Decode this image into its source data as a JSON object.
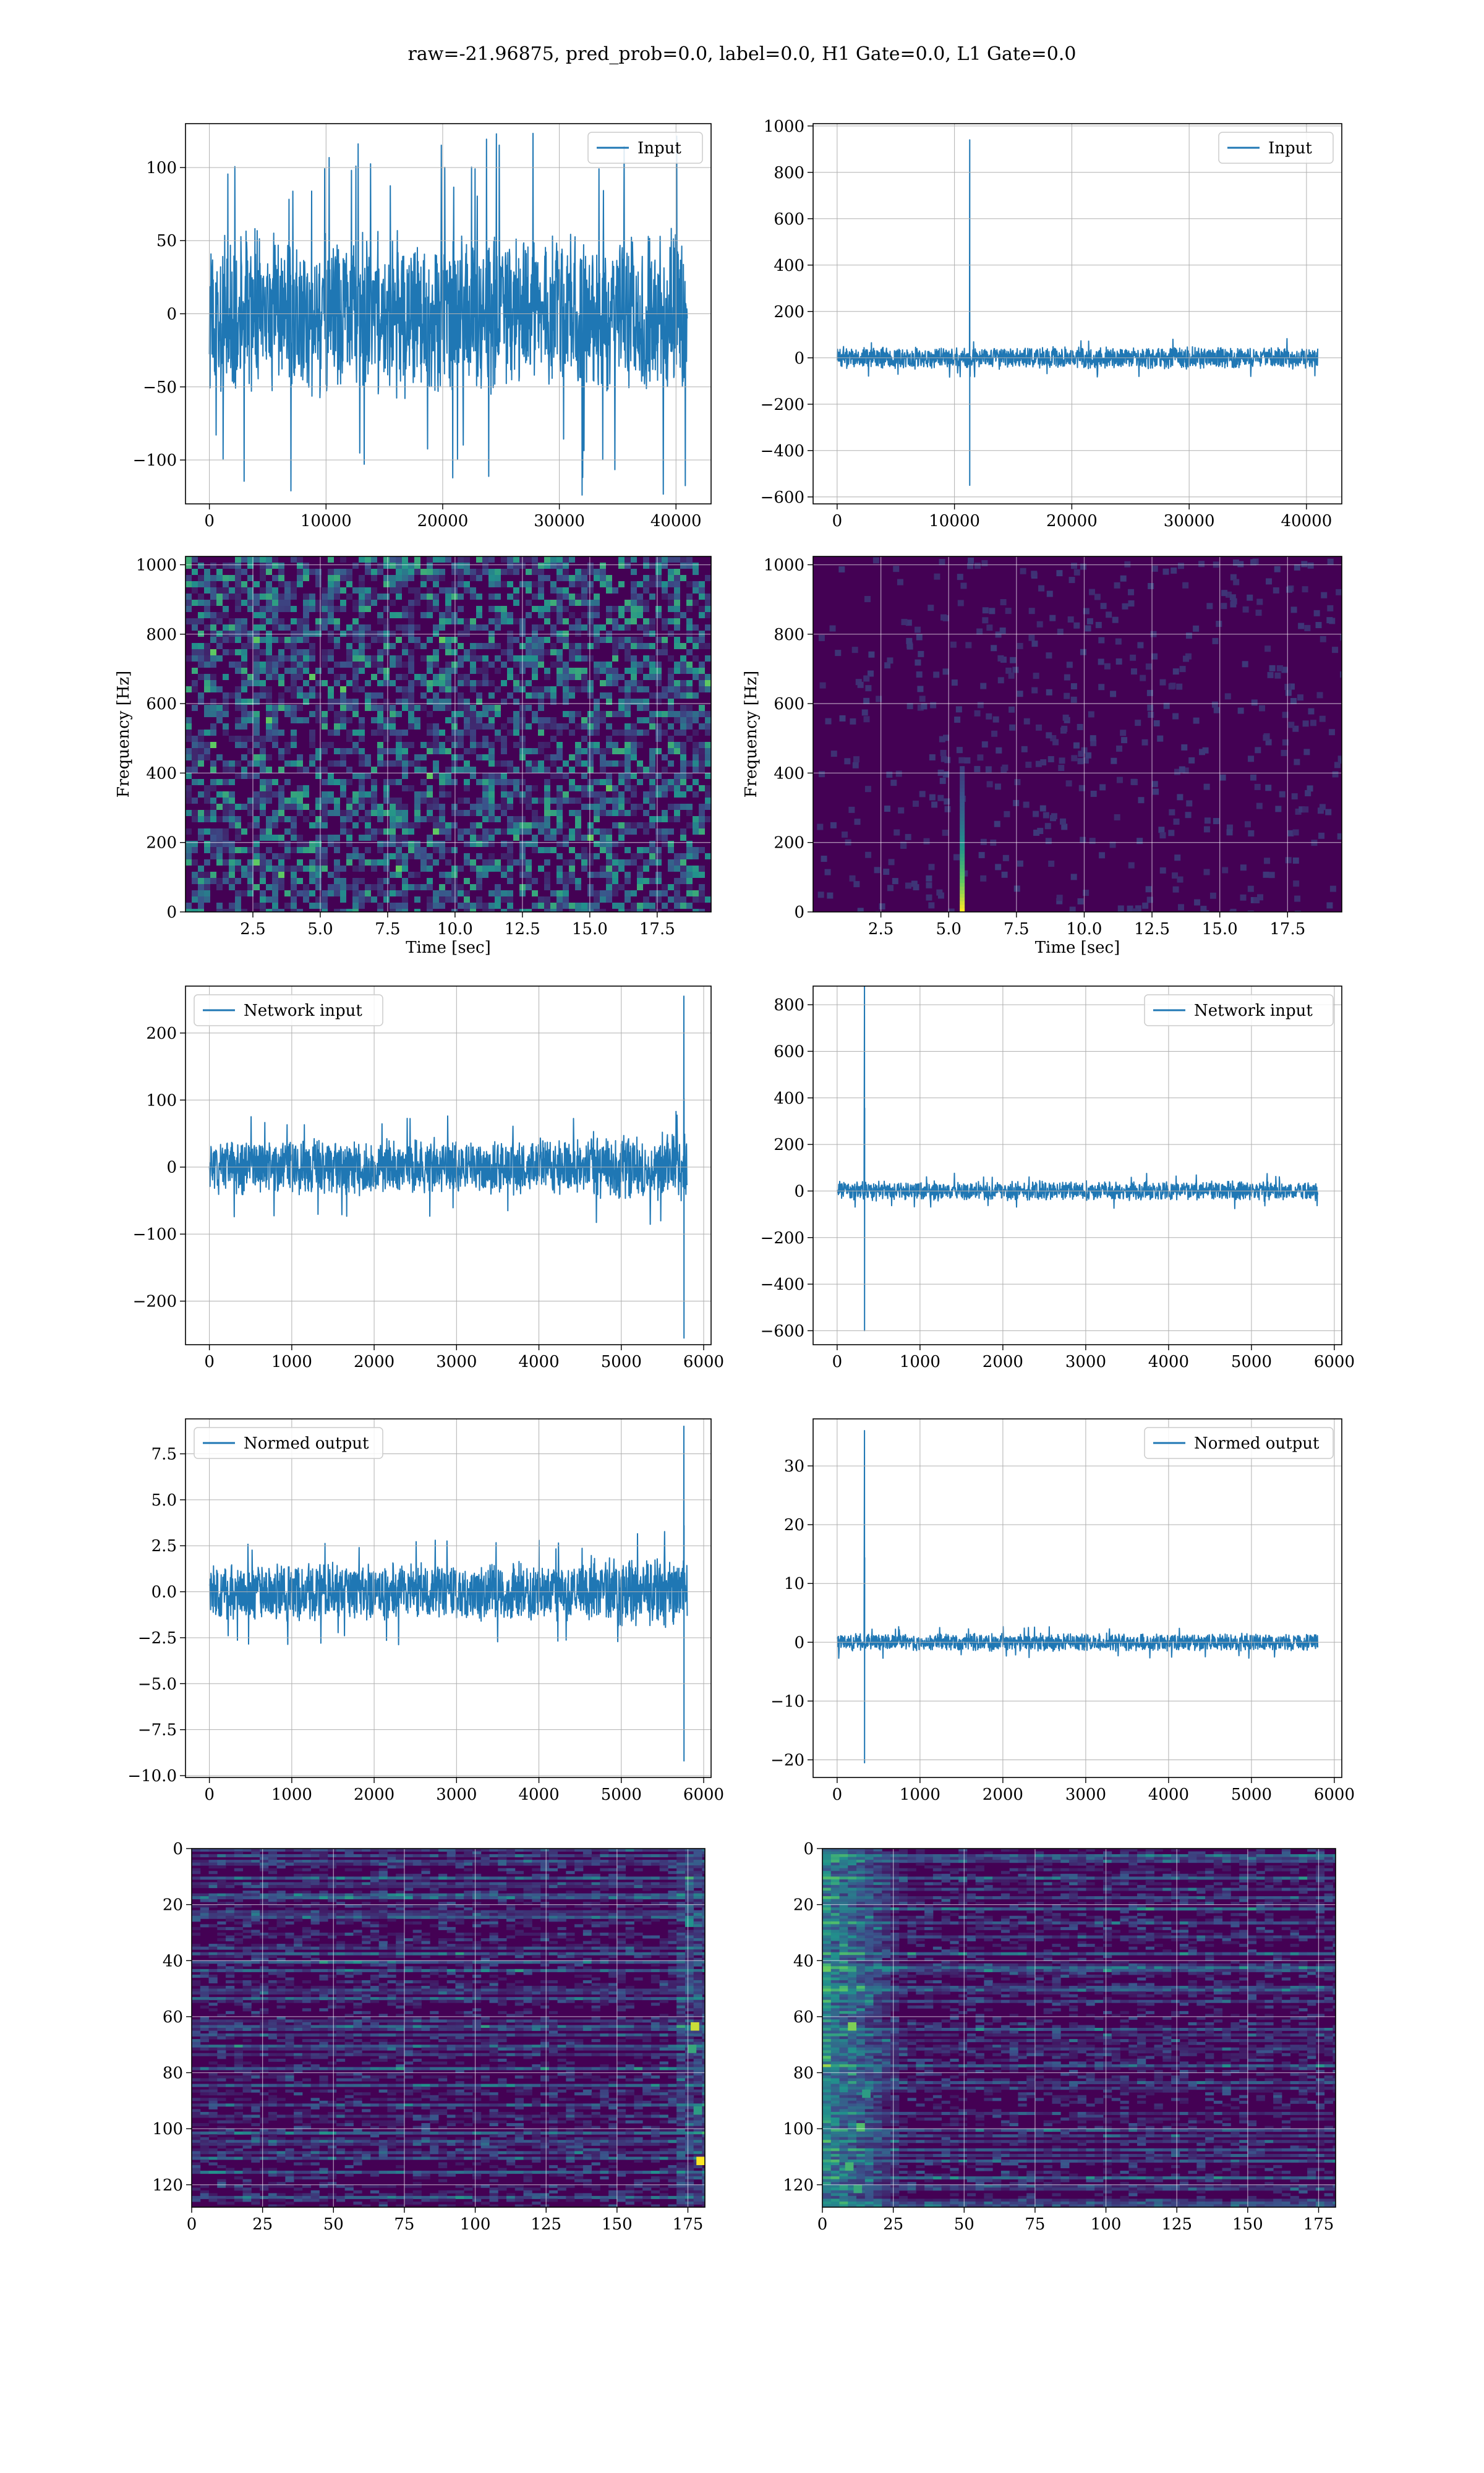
{
  "figure": {
    "title": "raw=-21.96875, pred_prob=0.0, label=0.0, H1 Gate=0.0, L1 Gate=0.0"
  },
  "colors": {
    "line": "#1f77b4",
    "viridis_low": "#440154",
    "viridis_mid": "#21918c",
    "viridis_high": "#fde725",
    "grid": "#b0b0b0"
  },
  "chart_data": [
    {
      "id": "input-h1",
      "type": "line",
      "legend": "Input",
      "legend_loc": "upper-right",
      "xlim": [
        -2048,
        43008
      ],
      "ylim": [
        -130,
        130
      ],
      "xticks": [
        0,
        10000,
        20000,
        30000,
        40000
      ],
      "yticks": [
        -100,
        -50,
        0,
        50,
        100
      ],
      "x": [
        0,
        40960
      ],
      "noise_amp": 60,
      "peak_amp": 125,
      "grid": true
    },
    {
      "id": "input-l1",
      "type": "line",
      "legend": "Input",
      "legend_loc": "upper-right",
      "xlim": [
        -2048,
        43008
      ],
      "ylim": [
        -630,
        1010
      ],
      "xticks": [
        0,
        10000,
        20000,
        30000,
        40000
      ],
      "yticks": [
        -600,
        -400,
        -200,
        0,
        200,
        400,
        600,
        800,
        1000
      ],
      "x": [
        0,
        40960
      ],
      "noise_amp": 50,
      "spike": {
        "x": 11300,
        "max": 940,
        "min": -550
      },
      "grid": true
    },
    {
      "id": "spec-h1",
      "type": "heatmap",
      "xlabel": "Time [sec]",
      "ylabel": "Frequency [Hz]",
      "xlim": [
        0,
        19.5
      ],
      "ylim": [
        0,
        1024
      ],
      "xticks": [
        2.5,
        5.0,
        7.5,
        10.0,
        12.5,
        15.0,
        17.5
      ],
      "yticks": [
        0,
        200,
        400,
        600,
        800,
        1000
      ],
      "pattern": "noise",
      "grid": true
    },
    {
      "id": "spec-l1",
      "type": "heatmap",
      "xlabel": "Time [sec]",
      "ylabel": "Frequency [Hz]",
      "xlim": [
        0,
        19.5
      ],
      "ylim": [
        0,
        1024
      ],
      "xticks": [
        2.5,
        5.0,
        7.5,
        10.0,
        12.5,
        15.0,
        17.5
      ],
      "yticks": [
        0,
        200,
        400,
        600,
        800,
        1000
      ],
      "pattern": "glitch",
      "glitch_time": 5.5,
      "grid": true
    },
    {
      "id": "net-h1",
      "type": "line",
      "legend": "Network input",
      "legend_loc": "upper-left",
      "xlim": [
        -290,
        6090
      ],
      "ylim": [
        -265,
        270
      ],
      "xticks": [
        0,
        1000,
        2000,
        3000,
        4000,
        5000,
        6000
      ],
      "yticks": [
        -200,
        -100,
        0,
        100,
        200
      ],
      "x": [
        0,
        5800
      ],
      "noise_amp": 45,
      "spike": {
        "x": 5760,
        "max": 255,
        "min": -255
      },
      "grid": true
    },
    {
      "id": "net-l1",
      "type": "line",
      "legend": "Network input",
      "legend_loc": "upper-right",
      "xlim": [
        -290,
        6090
      ],
      "ylim": [
        -660,
        880
      ],
      "xticks": [
        0,
        1000,
        2000,
        3000,
        4000,
        5000,
        6000
      ],
      "yticks": [
        -600,
        -400,
        -200,
        0,
        200,
        400,
        600,
        800
      ],
      "x": [
        0,
        5800
      ],
      "noise_amp": 45,
      "spike": {
        "x": 330,
        "max": 890,
        "min": -600
      },
      "grid": true
    },
    {
      "id": "norm-h1",
      "type": "line",
      "legend": "Normed output",
      "legend_loc": "upper-left",
      "xlim": [
        -290,
        6090
      ],
      "ylim": [
        -10.1,
        9.4
      ],
      "xticks": [
        0,
        1000,
        2000,
        3000,
        4000,
        5000,
        6000
      ],
      "yticks": [
        -10.0,
        -7.5,
        -5.0,
        -2.5,
        0.0,
        2.5,
        5.0,
        7.5
      ],
      "x": [
        0,
        5800
      ],
      "noise_amp": 1.7,
      "spike": {
        "x": 5760,
        "max": 9.0,
        "min": -9.2
      },
      "grid": true
    },
    {
      "id": "norm-l1",
      "type": "line",
      "legend": "Normed output",
      "legend_loc": "upper-right",
      "xlim": [
        -290,
        6090
      ],
      "ylim": [
        -23,
        38
      ],
      "xticks": [
        0,
        1000,
        2000,
        3000,
        4000,
        5000,
        6000
      ],
      "yticks": [
        -20,
        -10,
        0,
        10,
        20,
        30
      ],
      "x": [
        0,
        5800
      ],
      "noise_amp": 1.6,
      "spike": {
        "x": 330,
        "max": 36,
        "min": -20.5
      },
      "grid": true
    },
    {
      "id": "feat-h1",
      "type": "heatmap",
      "xlim": [
        0,
        181
      ],
      "ylim": [
        128,
        0
      ],
      "xticks": [
        0,
        25,
        50,
        75,
        100,
        125,
        150,
        175
      ],
      "yticks": [
        0,
        20,
        40,
        60,
        80,
        100,
        120
      ],
      "pattern": "feature-right",
      "grid": true
    },
    {
      "id": "feat-l1",
      "type": "heatmap",
      "xlim": [
        0,
        181
      ],
      "ylim": [
        128,
        0
      ],
      "xticks": [
        0,
        25,
        50,
        75,
        100,
        125,
        150,
        175
      ],
      "yticks": [
        0,
        20,
        40,
        60,
        80,
        100,
        120
      ],
      "pattern": "feature-left",
      "grid": true
    }
  ]
}
